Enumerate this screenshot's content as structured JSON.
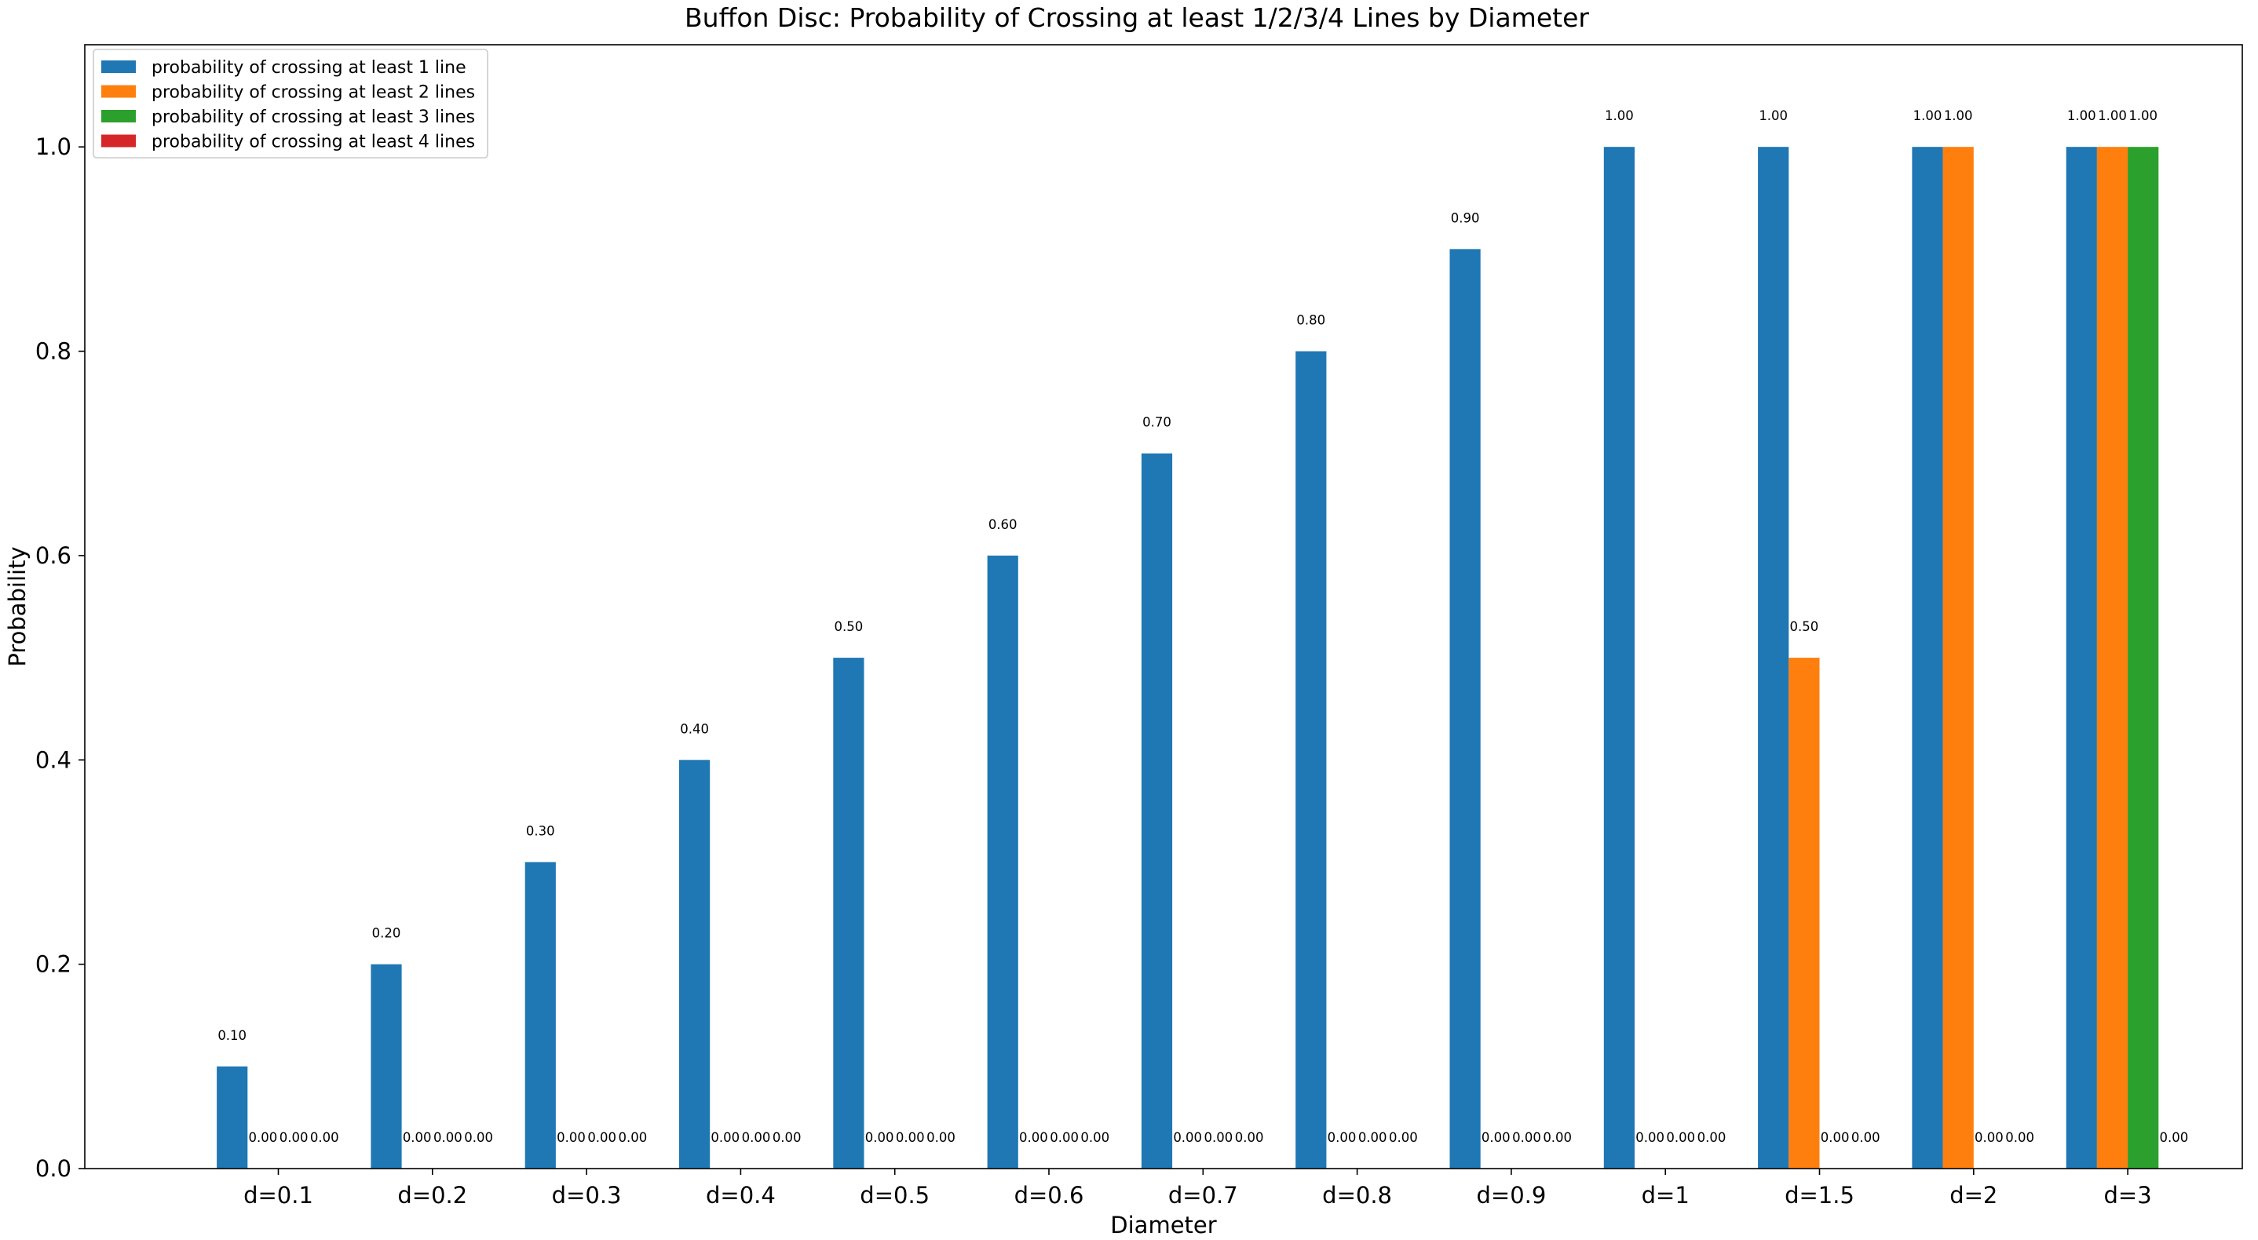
{
  "chart_data": {
    "type": "bar",
    "title": "Buffon Disc: Probability of Crossing at least 1/2/3/4 Lines by Diameter",
    "xlabel": "Diameter",
    "ylabel": "Probability",
    "ylim": [
      0,
      1.1
    ],
    "yticks": [
      "0.0",
      "0.2",
      "0.4",
      "0.6",
      "0.8",
      "1.0"
    ],
    "grid": false,
    "legend_position": "top-left",
    "categories": [
      "d=0.1",
      "d=0.2",
      "d=0.3",
      "d=0.4",
      "d=0.5",
      "d=0.6",
      "d=0.7",
      "d=0.8",
      "d=0.9",
      "d=1",
      "d=1.5",
      "d=2",
      "d=3"
    ],
    "series": [
      {
        "name": "probability of crossing at least 1 line",
        "color": "#1f77b4",
        "values": [
          0.1,
          0.2,
          0.3,
          0.4,
          0.5,
          0.6,
          0.7,
          0.8,
          0.9,
          1.0,
          1.0,
          1.0,
          1.0
        ]
      },
      {
        "name": "probability of crossing at least 2 lines",
        "color": "#ff7f0e",
        "values": [
          0.0,
          0.0,
          0.0,
          0.0,
          0.0,
          0.0,
          0.0,
          0.0,
          0.0,
          0.0,
          0.5,
          1.0,
          1.0
        ]
      },
      {
        "name": "probability of crossing at least 3 lines",
        "color": "#2ca02c",
        "values": [
          0.0,
          0.0,
          0.0,
          0.0,
          0.0,
          0.0,
          0.0,
          0.0,
          0.0,
          0.0,
          0.0,
          0.0,
          1.0
        ]
      },
      {
        "name": "probability of crossing at least 4 lines",
        "color": "#d62728",
        "values": [
          null,
          null,
          null,
          null,
          null,
          null,
          null,
          null,
          null,
          null,
          null,
          null,
          0.0
        ]
      }
    ],
    "bar_labels": [
      [
        "0.10",
        "0.00",
        "0.00",
        "0.00"
      ],
      [
        "0.20",
        "0.00",
        "0.00",
        "0.00"
      ],
      [
        "0.30",
        "0.00",
        "0.00",
        "0.00"
      ],
      [
        "0.40",
        "0.00",
        "0.00",
        "0.00"
      ],
      [
        "0.50",
        "0.00",
        "0.00",
        "0.00"
      ],
      [
        "0.60",
        "0.00",
        "0.00",
        "0.00"
      ],
      [
        "0.70",
        "0.00",
        "0.00",
        "0.00"
      ],
      [
        "0.80",
        "0.00",
        "0.00",
        "0.00"
      ],
      [
        "0.90",
        "0.00",
        "0.00",
        "0.00"
      ],
      [
        "1.00",
        "0.00",
        "0.00",
        "0.00"
      ],
      [
        "1.00",
        "0.50",
        "0.00",
        "0.00"
      ],
      [
        "1.00",
        "1.00",
        "0.00",
        "0.00"
      ],
      [
        "1.00",
        "1.00",
        "1.00",
        "0.00"
      ]
    ]
  }
}
